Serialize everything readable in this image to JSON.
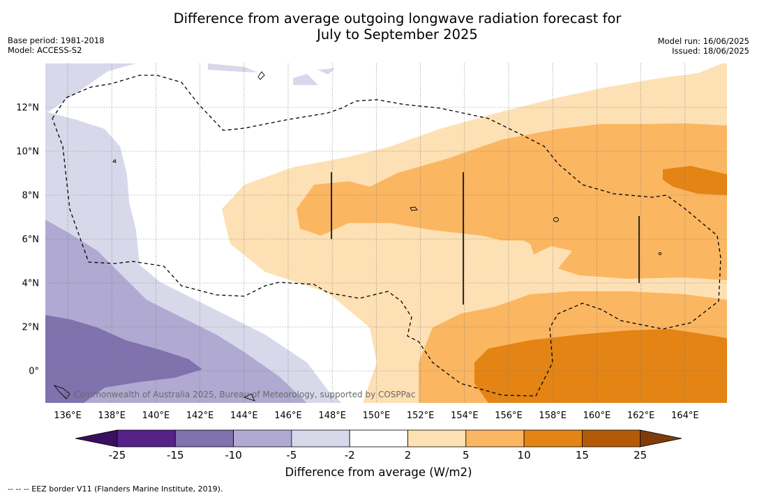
{
  "header": {
    "title_line1": "Difference from average outgoing longwave radiation forecast for",
    "title_line2": "July to September 2025",
    "base_period": "Base period: 1981-2018",
    "model": "Model: ACCESS-S2",
    "model_run": "Model run: 16/06/2025",
    "issued": "Issued: 18/06/2025"
  },
  "map": {
    "lon_ticks": [
      "136°E",
      "138°E",
      "140°E",
      "142°E",
      "144°E",
      "146°E",
      "148°E",
      "150°E",
      "152°E",
      "154°E",
      "156°E",
      "158°E",
      "160°E",
      "162°E",
      "164°E"
    ],
    "lat_ticks": [
      "12°N",
      "10°N",
      "8°N",
      "6°N",
      "4°N",
      "2°N",
      "0°"
    ],
    "copyright": "© Commonwealth of Australia 2025, Bureau of Meteorology, supported by COSPPac"
  },
  "colorbar": {
    "title": "Difference from average (W/m2)",
    "labels": [
      "-25",
      "-15",
      "-10",
      "-5",
      "-2",
      "2",
      "5",
      "10",
      "15",
      "25"
    ],
    "colors": [
      "#552288",
      "#7f72ad",
      "#b0a9d1",
      "#d8d8eb",
      "#ffffff",
      "#fde0b4",
      "#fbb661",
      "#e38415",
      "#b35a08"
    ],
    "under_color": "#3b0f60",
    "over_color": "#7f3b08"
  },
  "footer": {
    "eez_note": "--  --  -- EEZ border V11 (Flanders Marine Institute, 2019)."
  }
}
